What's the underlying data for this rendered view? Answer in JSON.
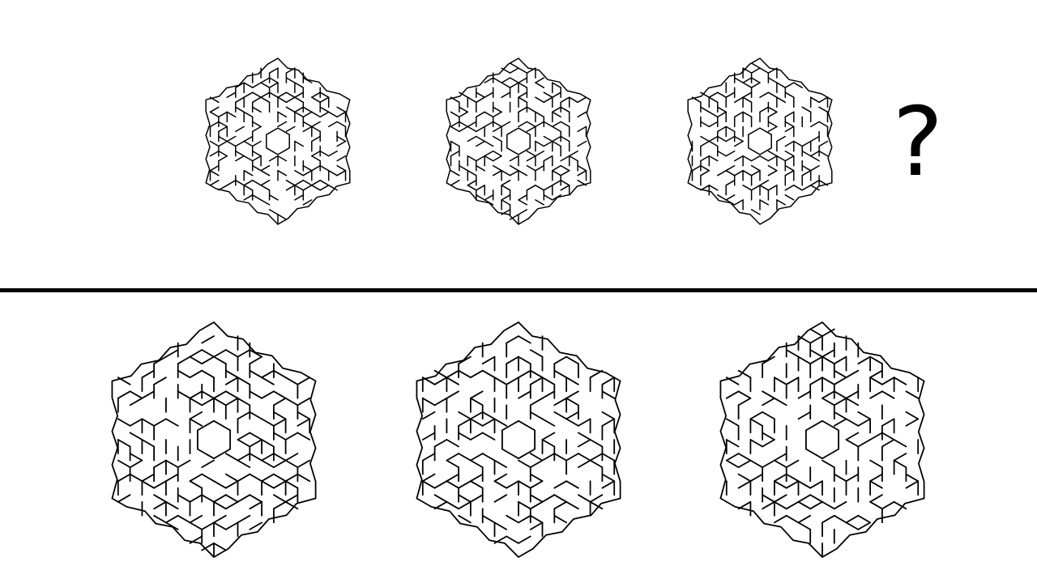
{
  "question_mark": "?",
  "colors": {
    "background": "#ffffff",
    "maze_stroke": "#000000",
    "divider": "#000000"
  },
  "sequence": [
    {
      "name": "maze-1"
    },
    {
      "name": "maze-2"
    },
    {
      "name": "maze-3"
    }
  ],
  "options": [
    {
      "name": "option-1"
    },
    {
      "name": "option-2"
    },
    {
      "name": "option-3"
    }
  ]
}
